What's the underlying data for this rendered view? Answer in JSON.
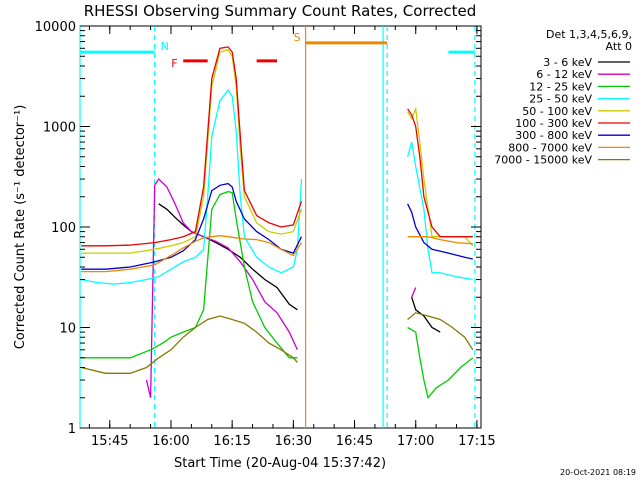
{
  "chart_data": {
    "type": "line",
    "title": "RHESSI Observing Summary Count Rates, Corrected",
    "xlabel": "Start Time (20-Aug-04 15:37:42)",
    "ylabel": "Corrected Count Rate (s⁻¹ detector⁻¹)",
    "y_scale": "log",
    "ylim": [
      1,
      10000
    ],
    "xlim": [
      "15:37:42",
      "17:16:00"
    ],
    "x_ticks": [
      "15:45",
      "16:00",
      "16:15",
      "16:30",
      "16:45",
      "17:00",
      "17:15"
    ],
    "y_ticks": [
      "1",
      "10",
      "100",
      "1000",
      "10000"
    ],
    "legend_header": [
      "Det 1,3,4,5,6,9,",
      "Att 0"
    ],
    "legend_position": "right",
    "grid": false,
    "series": [
      {
        "name": "3 - 6 keV",
        "color": "#000000",
        "points": [
          [
            "15:57",
            170
          ],
          [
            "15:59",
            150
          ],
          [
            "16:01",
            125
          ],
          [
            "16:03",
            105
          ],
          [
            "16:05",
            90
          ],
          [
            "16:08",
            80
          ],
          [
            "16:11",
            70
          ],
          [
            "16:14",
            60
          ],
          [
            "16:17",
            50
          ],
          [
            "16:20",
            38
          ],
          [
            "16:23",
            30
          ],
          [
            "16:26",
            25
          ],
          [
            "16:29",
            17
          ],
          [
            "16:31",
            15
          ],
          [
            "16:59",
            20
          ],
          [
            "17:00",
            15
          ],
          [
            "17:02",
            13
          ],
          [
            "17:04",
            10
          ],
          [
            "17:06",
            9
          ]
        ]
      },
      {
        "name": "6 - 12 keV",
        "color": "#cc00cc",
        "points": [
          [
            "15:54",
            3
          ],
          [
            "15:55",
            2
          ],
          [
            "15:56",
            260
          ],
          [
            "15:57",
            300
          ],
          [
            "15:59",
            250
          ],
          [
            "16:01",
            170
          ],
          [
            "16:03",
            110
          ],
          [
            "16:05",
            90
          ],
          [
            "16:08",
            80
          ],
          [
            "16:11",
            72
          ],
          [
            "16:14",
            62
          ],
          [
            "16:17",
            45
          ],
          [
            "16:20",
            30
          ],
          [
            "16:23",
            18
          ],
          [
            "16:26",
            14
          ],
          [
            "16:29",
            9
          ],
          [
            "16:31",
            6
          ],
          [
            "16:59",
            20
          ],
          [
            "17:00",
            25
          ]
        ]
      },
      {
        "name": "12 - 25 keV",
        "color": "#00cc00",
        "points": [
          [
            "15:38",
            5
          ],
          [
            "15:45",
            5
          ],
          [
            "15:50",
            5
          ],
          [
            "15:55",
            6
          ],
          [
            "15:58",
            7
          ],
          [
            "16:00",
            8
          ],
          [
            "16:03",
            9
          ],
          [
            "16:06",
            10
          ],
          [
            "16:08",
            15
          ],
          [
            "16:10",
            150
          ],
          [
            "16:12",
            210
          ],
          [
            "16:14",
            225
          ],
          [
            "16:15",
            220
          ],
          [
            "16:16",
            120
          ],
          [
            "16:18",
            40
          ],
          [
            "16:20",
            18
          ],
          [
            "16:23",
            10
          ],
          [
            "16:26",
            7
          ],
          [
            "16:29",
            5
          ],
          [
            "16:31",
            5
          ],
          [
            "16:58",
            10
          ],
          [
            "17:00",
            9
          ],
          [
            "17:01",
            5
          ],
          [
            "17:02",
            3
          ],
          [
            "17:03",
            2
          ],
          [
            "17:05",
            2.5
          ],
          [
            "17:08",
            3
          ],
          [
            "17:11",
            4
          ],
          [
            "17:14",
            5
          ]
        ]
      },
      {
        "name": "25 - 50 keV",
        "color": "#00ffff",
        "points": [
          [
            "15:38",
            30
          ],
          [
            "15:42",
            28
          ],
          [
            "15:46",
            27
          ],
          [
            "15:50",
            28
          ],
          [
            "15:54",
            30
          ],
          [
            "15:57",
            32
          ],
          [
            "16:00",
            38
          ],
          [
            "16:03",
            45
          ],
          [
            "16:06",
            50
          ],
          [
            "16:08",
            60
          ],
          [
            "16:09",
            200
          ],
          [
            "16:10",
            800
          ],
          [
            "16:12",
            1800
          ],
          [
            "16:14",
            2300
          ],
          [
            "16:15",
            2000
          ],
          [
            "16:16",
            900
          ],
          [
            "16:17",
            200
          ],
          [
            "16:18",
            80
          ],
          [
            "16:21",
            50
          ],
          [
            "16:24",
            40
          ],
          [
            "16:27",
            35
          ],
          [
            "16:30",
            40
          ],
          [
            "16:31",
            60
          ],
          [
            "16:32",
            300
          ],
          [
            "16:58",
            500
          ],
          [
            "16:59",
            700
          ],
          [
            "17:00",
            400
          ],
          [
            "17:02",
            150
          ],
          [
            "17:03",
            60
          ],
          [
            "17:04",
            35
          ],
          [
            "17:06",
            35
          ],
          [
            "17:10",
            32
          ],
          [
            "17:14",
            30
          ]
        ]
      },
      {
        "name": "50 - 100 keV",
        "color": "#cccc00",
        "points": [
          [
            "15:38",
            55
          ],
          [
            "15:44",
            55
          ],
          [
            "15:50",
            55
          ],
          [
            "15:56",
            60
          ],
          [
            "16:00",
            65
          ],
          [
            "16:03",
            70
          ],
          [
            "16:06",
            80
          ],
          [
            "16:08",
            200
          ],
          [
            "16:10",
            2500
          ],
          [
            "16:12",
            5500
          ],
          [
            "16:14",
            5800
          ],
          [
            "16:15",
            5000
          ],
          [
            "16:16",
            2500
          ],
          [
            "16:17",
            600
          ],
          [
            "16:18",
            200
          ],
          [
            "16:21",
            110
          ],
          [
            "16:24",
            90
          ],
          [
            "16:27",
            85
          ],
          [
            "16:30",
            90
          ],
          [
            "16:32",
            150
          ],
          [
            "16:58",
            1400
          ],
          [
            "16:59",
            1200
          ],
          [
            "17:00",
            1500
          ],
          [
            "17:01",
            700
          ],
          [
            "17:02",
            300
          ],
          [
            "17:04",
            80
          ],
          [
            "17:08",
            80
          ],
          [
            "17:12",
            80
          ],
          [
            "17:14",
            65
          ]
        ]
      },
      {
        "name": "100 - 300 keV",
        "color": "#ee0000",
        "points": [
          [
            "15:38",
            65
          ],
          [
            "15:44",
            65
          ],
          [
            "15:50",
            66
          ],
          [
            "15:56",
            70
          ],
          [
            "16:00",
            75
          ],
          [
            "16:03",
            80
          ],
          [
            "16:06",
            90
          ],
          [
            "16:08",
            250
          ],
          [
            "16:10",
            3000
          ],
          [
            "16:12",
            6000
          ],
          [
            "16:14",
            6200
          ],
          [
            "16:15",
            5500
          ],
          [
            "16:16",
            3000
          ],
          [
            "16:17",
            800
          ],
          [
            "16:18",
            230
          ],
          [
            "16:21",
            130
          ],
          [
            "16:24",
            110
          ],
          [
            "16:27",
            100
          ],
          [
            "16:30",
            105
          ],
          [
            "16:32",
            180
          ],
          [
            "16:58",
            1500
          ],
          [
            "16:59",
            1300
          ],
          [
            "17:00",
            1000
          ],
          [
            "17:01",
            500
          ],
          [
            "17:02",
            200
          ],
          [
            "17:04",
            100
          ],
          [
            "17:06",
            80
          ],
          [
            "17:10",
            80
          ],
          [
            "17:14",
            80
          ]
        ]
      },
      {
        "name": "300 - 800 keV",
        "color": "#0000cc",
        "points": [
          [
            "15:38",
            38
          ],
          [
            "15:44",
            38
          ],
          [
            "15:50",
            40
          ],
          [
            "15:56",
            45
          ],
          [
            "16:00",
            50
          ],
          [
            "16:03",
            58
          ],
          [
            "16:06",
            75
          ],
          [
            "16:08",
            120
          ],
          [
            "16:10",
            230
          ],
          [
            "16:12",
            260
          ],
          [
            "16:14",
            270
          ],
          [
            "16:15",
            250
          ],
          [
            "16:16",
            180
          ],
          [
            "16:18",
            120
          ],
          [
            "16:21",
            90
          ],
          [
            "16:24",
            75
          ],
          [
            "16:27",
            60
          ],
          [
            "16:30",
            55
          ],
          [
            "16:32",
            80
          ],
          [
            "16:58",
            170
          ],
          [
            "16:59",
            140
          ],
          [
            "17:00",
            100
          ],
          [
            "17:02",
            70
          ],
          [
            "17:04",
            60
          ],
          [
            "17:08",
            55
          ],
          [
            "17:12",
            50
          ],
          [
            "17:14",
            48
          ]
        ]
      },
      {
        "name": "800 - 7000 keV",
        "color": "#ee8800",
        "points": [
          [
            "15:38",
            36
          ],
          [
            "15:44",
            36
          ],
          [
            "15:50",
            38
          ],
          [
            "15:56",
            42
          ],
          [
            "16:00",
            52
          ],
          [
            "16:03",
            62
          ],
          [
            "16:06",
            72
          ],
          [
            "16:08",
            78
          ],
          [
            "16:10",
            80
          ],
          [
            "16:12",
            82
          ],
          [
            "16:14",
            80
          ],
          [
            "16:16",
            78
          ],
          [
            "16:18",
            76
          ],
          [
            "16:21",
            75
          ],
          [
            "16:24",
            70
          ],
          [
            "16:27",
            60
          ],
          [
            "16:30",
            52
          ],
          [
            "16:32",
            70
          ],
          [
            "16:58",
            80
          ],
          [
            "17:00",
            80
          ],
          [
            "17:03",
            80
          ],
          [
            "17:06",
            75
          ],
          [
            "17:10",
            70
          ],
          [
            "17:14",
            68
          ]
        ]
      },
      {
        "name": "7000 - 15000 keV",
        "color": "#887700",
        "points": [
          [
            "15:38",
            4
          ],
          [
            "15:44",
            3.5
          ],
          [
            "15:50",
            3.5
          ],
          [
            "15:54",
            4
          ],
          [
            "15:57",
            5
          ],
          [
            "16:00",
            6
          ],
          [
            "16:03",
            8
          ],
          [
            "16:06",
            10
          ],
          [
            "16:09",
            12
          ],
          [
            "16:12",
            13
          ],
          [
            "16:15",
            12
          ],
          [
            "16:18",
            11
          ],
          [
            "16:21",
            9
          ],
          [
            "16:24",
            7
          ],
          [
            "16:27",
            6
          ],
          [
            "16:30",
            5
          ],
          [
            "16:31",
            4.5
          ],
          [
            "16:58",
            12
          ],
          [
            "17:00",
            14
          ],
          [
            "17:03",
            13
          ],
          [
            "17:06",
            12
          ],
          [
            "17:09",
            10
          ],
          [
            "17:12",
            8
          ],
          [
            "17:14",
            6
          ]
        ]
      }
    ],
    "flags": [
      {
        "label": "N",
        "color": "#00ffff",
        "segments": [
          [
            "15:37:42",
            "15:56"
          ],
          [
            "17:08",
            "17:14:30"
          ]
        ],
        "level": 5500
      },
      {
        "label": "F",
        "color": "#ee0000",
        "segments": [
          [
            "16:03",
            "16:09"
          ],
          [
            "16:21",
            "16:26"
          ]
        ],
        "level": 4500
      },
      {
        "label": "S",
        "color": "#ee8800",
        "segments": [
          [
            "16:33",
            "16:53"
          ]
        ],
        "level": 6800
      }
    ],
    "vlines": [
      {
        "time": "15:37:42",
        "color": "#00ffff",
        "style": "solid"
      },
      {
        "time": "15:56",
        "color": "#00ffff",
        "style": "dashed"
      },
      {
        "time": "16:33",
        "color": "#ee8800",
        "style": "solid"
      },
      {
        "time": "16:52",
        "color": "#00ffff",
        "style": "solid"
      },
      {
        "time": "16:53",
        "color": "#00ffff",
        "style": "dashed"
      },
      {
        "time": "17:14:30",
        "color": "#00ffff",
        "style": "dashed"
      }
    ]
  },
  "timestamp": "20-Oct-2021 08:19"
}
